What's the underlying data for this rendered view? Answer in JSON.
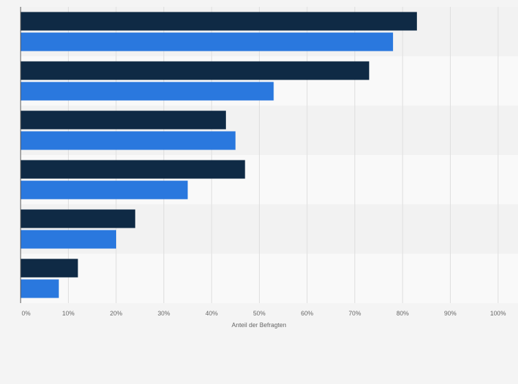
{
  "chart_data": {
    "type": "bar",
    "orientation": "horizontal",
    "categories": [
      "",
      "",
      "",
      "",
      "",
      ""
    ],
    "series": [
      {
        "color": "#0f2a45",
        "values": [
          83,
          73,
          43,
          47,
          24,
          12
        ]
      },
      {
        "color": "#2a78de",
        "values": [
          78,
          53,
          45,
          35,
          20,
          8
        ]
      }
    ],
    "xlabel": "Anteil der Befragten",
    "ylabel": "",
    "xlim": [
      0,
      100
    ],
    "x_ticks": [
      "0%",
      "10%",
      "20%",
      "30%",
      "40%",
      "50%",
      "60%",
      "70%",
      "80%",
      "90%",
      "100%"
    ],
    "grid": true,
    "legend": false
  }
}
